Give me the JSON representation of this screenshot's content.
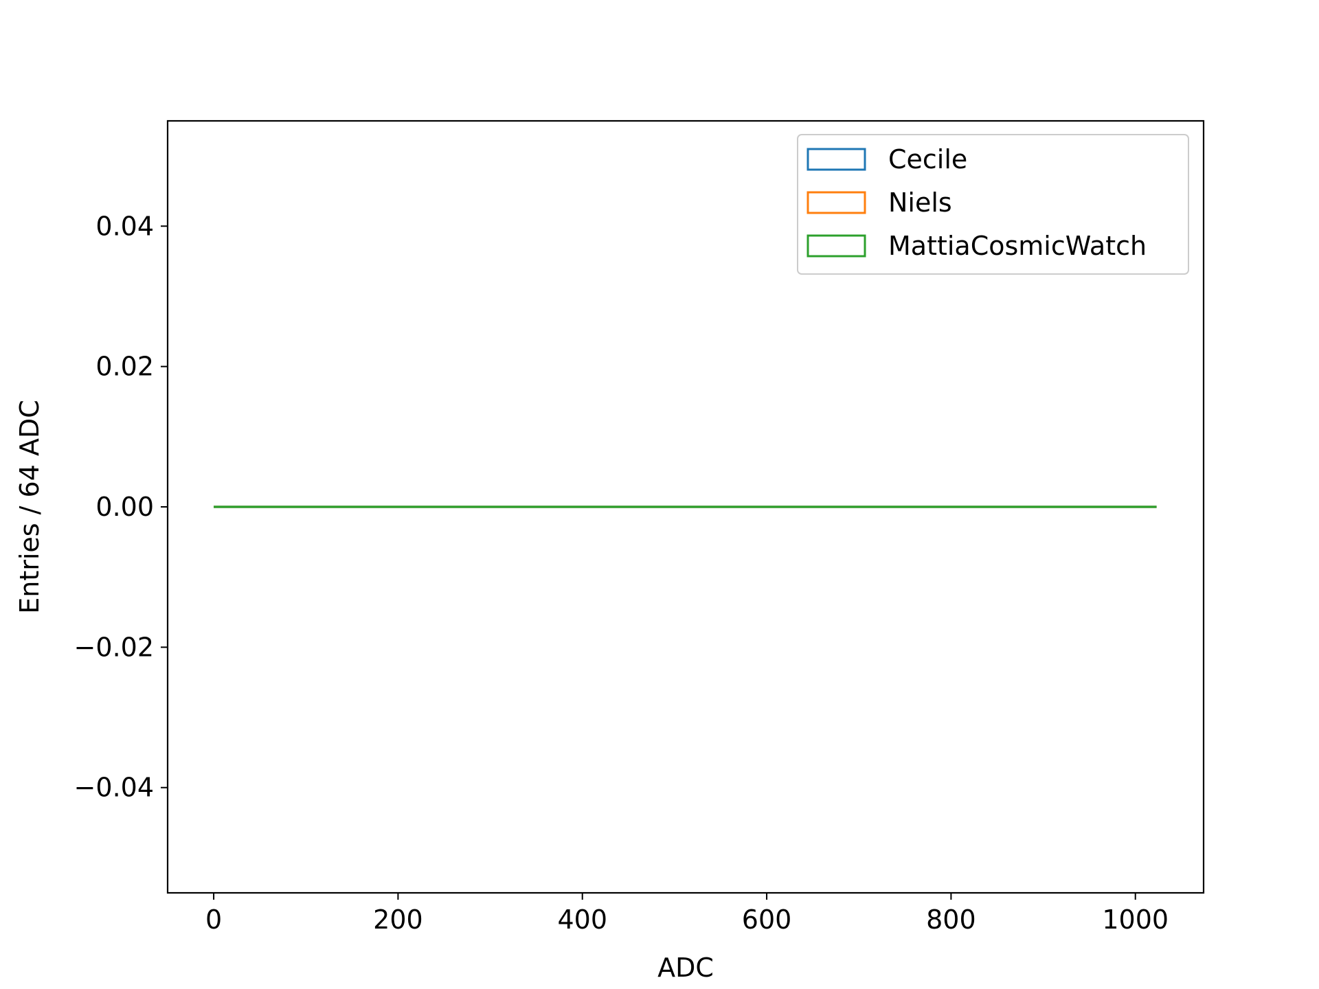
{
  "chart_data": {
    "type": "histogram",
    "histtype": "step",
    "xlabel": "ADC",
    "ylabel": "Entries / 64 ADC",
    "xlim": [
      -50,
      1074
    ],
    "ylim": [
      -0.055,
      0.055
    ],
    "xticks": [
      0,
      200,
      400,
      600,
      800,
      1000
    ],
    "xtick_labels": [
      "0",
      "200",
      "400",
      "600",
      "800",
      "1000"
    ],
    "yticks": [
      -0.04,
      -0.02,
      0.0,
      0.02,
      0.04
    ],
    "ytick_labels": [
      "−0.04",
      "−0.02",
      "0.00",
      "0.02",
      "0.04"
    ],
    "grid": false,
    "legend_position": "upper right",
    "series": [
      {
        "name": "Cecile",
        "color": "#1f77b4",
        "x": [
          0,
          1023
        ],
        "values": [
          0,
          0
        ]
      },
      {
        "name": "Niels",
        "color": "#ff7f0e",
        "x": [
          0,
          1023
        ],
        "values": [
          0,
          0
        ]
      },
      {
        "name": "MattiaCosmicWatch",
        "color": "#2ca02c",
        "x": [
          0,
          1023
        ],
        "values": [
          0,
          0
        ]
      }
    ]
  }
}
